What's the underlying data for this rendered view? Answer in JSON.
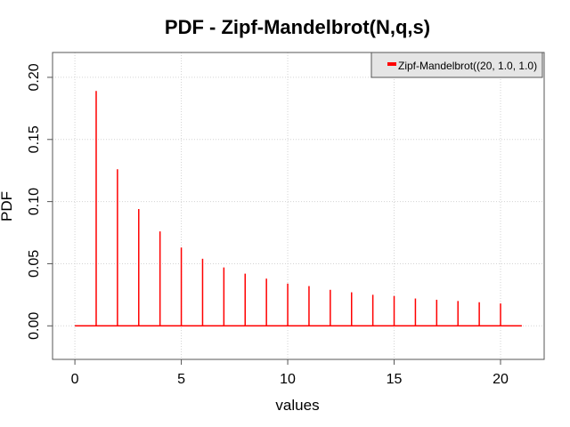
{
  "chart_data": {
    "type": "bar",
    "title": "PDF - Zipf-Mandelbrot(N,q,s)",
    "xlabel": "values",
    "ylabel": "PDF",
    "xlim": [
      -1.05,
      22.05
    ],
    "ylim": [
      -0.027,
      0.22
    ],
    "xticks": [
      0,
      5,
      10,
      15,
      20
    ],
    "yticks": [
      0.0,
      0.05,
      0.1,
      0.15,
      0.2
    ],
    "xtick_labels": [
      "0",
      "5",
      "10",
      "15",
      "20"
    ],
    "ytick_labels": [
      "0.00",
      "0.05",
      "0.10",
      "0.15",
      "0.20"
    ],
    "grid": true,
    "legend_position": "top-right",
    "baseline": {
      "x_start": 0,
      "x_end": 21,
      "y": 0
    },
    "series": [
      {
        "name": "Zipf-Mandelbrot((20, 1.0, 1.0)",
        "color": "#ff0000",
        "x": [
          1,
          2,
          3,
          4,
          5,
          6,
          7,
          8,
          9,
          10,
          11,
          12,
          13,
          14,
          15,
          16,
          17,
          18,
          19,
          20
        ],
        "values": [
          0.189,
          0.126,
          0.094,
          0.076,
          0.063,
          0.054,
          0.047,
          0.042,
          0.038,
          0.034,
          0.032,
          0.029,
          0.027,
          0.025,
          0.024,
          0.022,
          0.021,
          0.02,
          0.019,
          0.018
        ]
      }
    ]
  }
}
